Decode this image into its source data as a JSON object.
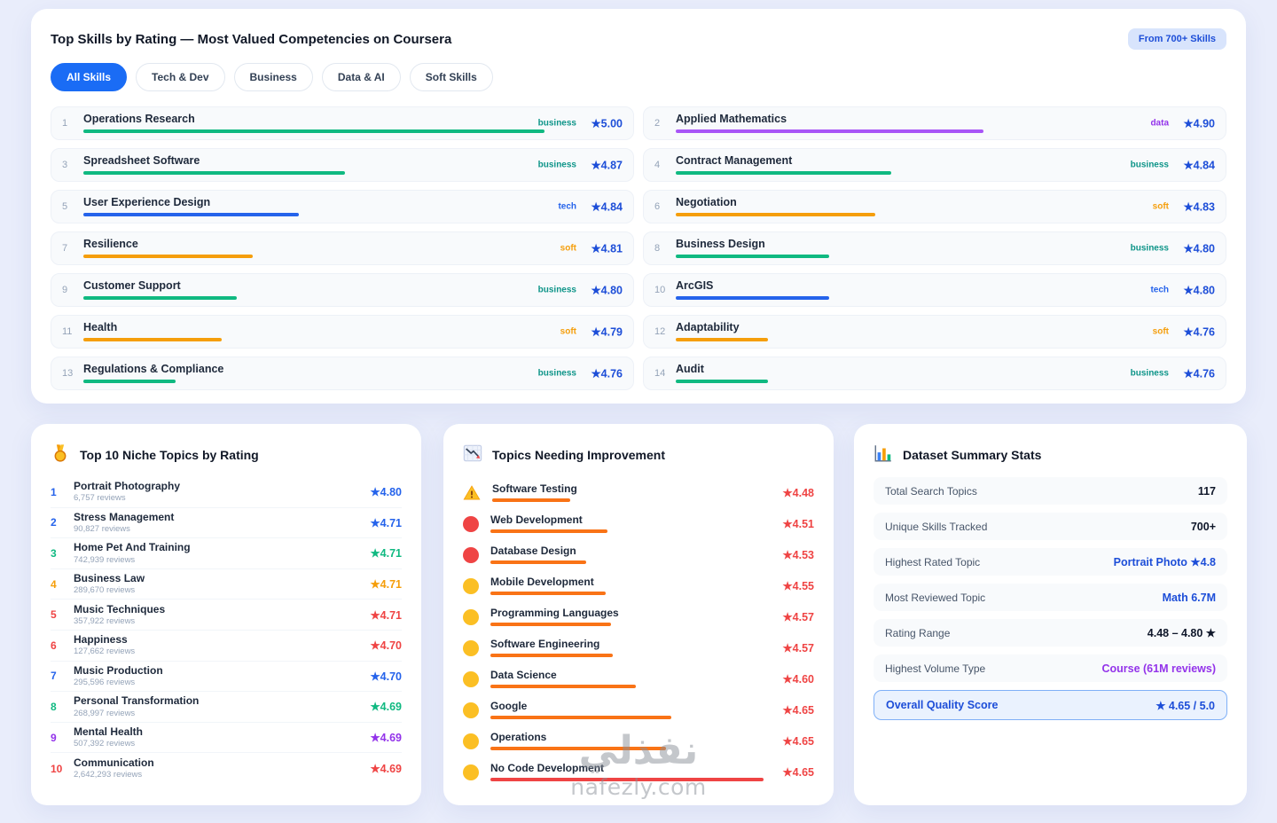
{
  "colors": {
    "accent_blue": "#1d4ed8",
    "tab_active_bg": "#1a6cf5",
    "rating_red": "#ef4444",
    "categories": {
      "business": {
        "text": "#0d9488",
        "bar": "#10b981"
      },
      "data": {
        "text": "#9333ea",
        "bar": "#a855f7"
      },
      "tech": {
        "text": "#2563eb",
        "bar": "#2563eb"
      },
      "soft": {
        "text": "#f59e0b",
        "bar": "#f59e0b"
      }
    }
  },
  "icons": {
    "niche_header": "medal-icon",
    "improvement_header": "chart-decrease-icon",
    "stats_header": "bar-chart-icon",
    "first_improvement_item": "warning-icon",
    "star_glyph": "★"
  },
  "top_card": {
    "title": "Top Skills by Rating — Most Valued Competencies on Coursera",
    "badge": "From 700+ Skills",
    "tabs": [
      {
        "label": "All Skills",
        "active": true
      },
      {
        "label": "Tech & Dev",
        "active": false
      },
      {
        "label": "Business",
        "active": false
      },
      {
        "label": "Data & AI",
        "active": false
      },
      {
        "label": "Soft Skills",
        "active": false
      }
    ],
    "skills": [
      {
        "rank": 1,
        "name": "Operations Research",
        "tag": "business",
        "rating": "5.00"
      },
      {
        "rank": 2,
        "name": "Applied Mathematics",
        "tag": "data",
        "rating": "4.90"
      },
      {
        "rank": 3,
        "name": "Spreadsheet Software",
        "tag": "business",
        "rating": "4.87"
      },
      {
        "rank": 4,
        "name": "Contract Management",
        "tag": "business",
        "rating": "4.84"
      },
      {
        "rank": 5,
        "name": "User Experience Design",
        "tag": "tech",
        "rating": "4.84"
      },
      {
        "rank": 6,
        "name": "Negotiation",
        "tag": "soft",
        "rating": "4.83"
      },
      {
        "rank": 7,
        "name": "Resilience",
        "tag": "soft",
        "rating": "4.81"
      },
      {
        "rank": 8,
        "name": "Business Design",
        "tag": "business",
        "rating": "4.80"
      },
      {
        "rank": 9,
        "name": "Customer Support",
        "tag": "business",
        "rating": "4.80"
      },
      {
        "rank": 10,
        "name": "ArcGIS",
        "tag": "tech",
        "rating": "4.80"
      },
      {
        "rank": 11,
        "name": "Health",
        "tag": "soft",
        "rating": "4.79"
      },
      {
        "rank": 12,
        "name": "Adaptability",
        "tag": "soft",
        "rating": "4.76"
      },
      {
        "rank": 13,
        "name": "Regulations & Compliance",
        "tag": "business",
        "rating": "4.76"
      },
      {
        "rank": 14,
        "name": "Audit",
        "tag": "business",
        "rating": "4.76"
      }
    ]
  },
  "niche_card": {
    "title": "Top 10 Niche Topics by Rating",
    "items": [
      {
        "rank": 1,
        "name": "Portrait Photography",
        "reviews": "6,757 reviews",
        "rating": "4.80",
        "color": "#2563eb"
      },
      {
        "rank": 2,
        "name": "Stress Management",
        "reviews": "90,827 reviews",
        "rating": "4.71",
        "color": "#2563eb"
      },
      {
        "rank": 3,
        "name": "Home Pet And Training",
        "reviews": "742,939 reviews",
        "rating": "4.71",
        "color": "#10b981"
      },
      {
        "rank": 4,
        "name": "Business Law",
        "reviews": "289,670 reviews",
        "rating": "4.71",
        "color": "#f59e0b"
      },
      {
        "rank": 5,
        "name": "Music Techniques",
        "reviews": "357,922 reviews",
        "rating": "4.71",
        "color": "#ef4444"
      },
      {
        "rank": 6,
        "name": "Happiness",
        "reviews": "127,662 reviews",
        "rating": "4.70",
        "color": "#ef4444"
      },
      {
        "rank": 7,
        "name": "Music Production",
        "reviews": "295,596 reviews",
        "rating": "4.70",
        "color": "#2563eb"
      },
      {
        "rank": 8,
        "name": "Personal Transformation",
        "reviews": "268,997 reviews",
        "rating": "4.69",
        "color": "#10b981"
      },
      {
        "rank": 9,
        "name": "Mental Health",
        "reviews": "507,392 reviews",
        "rating": "4.69",
        "color": "#9333ea"
      },
      {
        "rank": 10,
        "name": "Communication",
        "reviews": "2,642,293 reviews",
        "rating": "4.69",
        "color": "#ef4444"
      }
    ]
  },
  "improvement_card": {
    "title": "Topics Needing Improvement",
    "items": [
      {
        "name": "Software Testing",
        "rating": "4.48",
        "icon": "warning",
        "bar": 88,
        "bar_color": "#f97316"
      },
      {
        "name": "Web Development",
        "rating": "4.51",
        "icon": "red",
        "bar": 132,
        "bar_color": "#f97316"
      },
      {
        "name": "Database Design",
        "rating": "4.53",
        "icon": "red",
        "bar": 108,
        "bar_color": "#f97316"
      },
      {
        "name": "Mobile Development",
        "rating": "4.55",
        "icon": "yellow",
        "bar": 130,
        "bar_color": "#f97316"
      },
      {
        "name": "Programming Languages",
        "rating": "4.57",
        "icon": "yellow",
        "bar": 136,
        "bar_color": "#f97316"
      },
      {
        "name": "Software Engineering",
        "rating": "4.57",
        "icon": "yellow",
        "bar": 138,
        "bar_color": "#f97316"
      },
      {
        "name": "Data Science",
        "rating": "4.60",
        "icon": "yellow",
        "bar": 164,
        "bar_color": "#f97316"
      },
      {
        "name": "Google",
        "rating": "4.65",
        "icon": "yellow",
        "bar": 204,
        "bar_color": "#f97316"
      },
      {
        "name": "Operations",
        "rating": "4.65",
        "icon": "yellow",
        "bar": 198,
        "bar_color": "#f97316"
      },
      {
        "name": "No Code Development",
        "rating": "4.65",
        "icon": "yellow",
        "bar": 308,
        "bar_color": "#ef4444"
      }
    ]
  },
  "stats_card": {
    "title": "Dataset Summary Stats",
    "rows": [
      {
        "label": "Total Search Topics",
        "value": "117",
        "value_color": "#0f172a"
      },
      {
        "label": "Unique Skills Tracked",
        "value": "700+",
        "value_color": "#0f172a"
      },
      {
        "label": "Highest Rated Topic",
        "value": "Portrait Photo ★4.8",
        "value_color": "#1d4ed8"
      },
      {
        "label": "Most Reviewed Topic",
        "value": "Math 6.7M",
        "value_color": "#1d4ed8"
      },
      {
        "label": "Rating Range",
        "value": "4.48 – 4.80 ★",
        "value_color": "#0f172a"
      },
      {
        "label": "Highest Volume Type",
        "value": "Course (61M reviews)",
        "value_color": "#9333ea"
      }
    ],
    "highlight": {
      "label": "Overall Quality Score",
      "value": "★ 4.65 / 5.0"
    }
  },
  "watermark": {
    "line1": "نفذلي",
    "line2": "nafezly.com"
  }
}
